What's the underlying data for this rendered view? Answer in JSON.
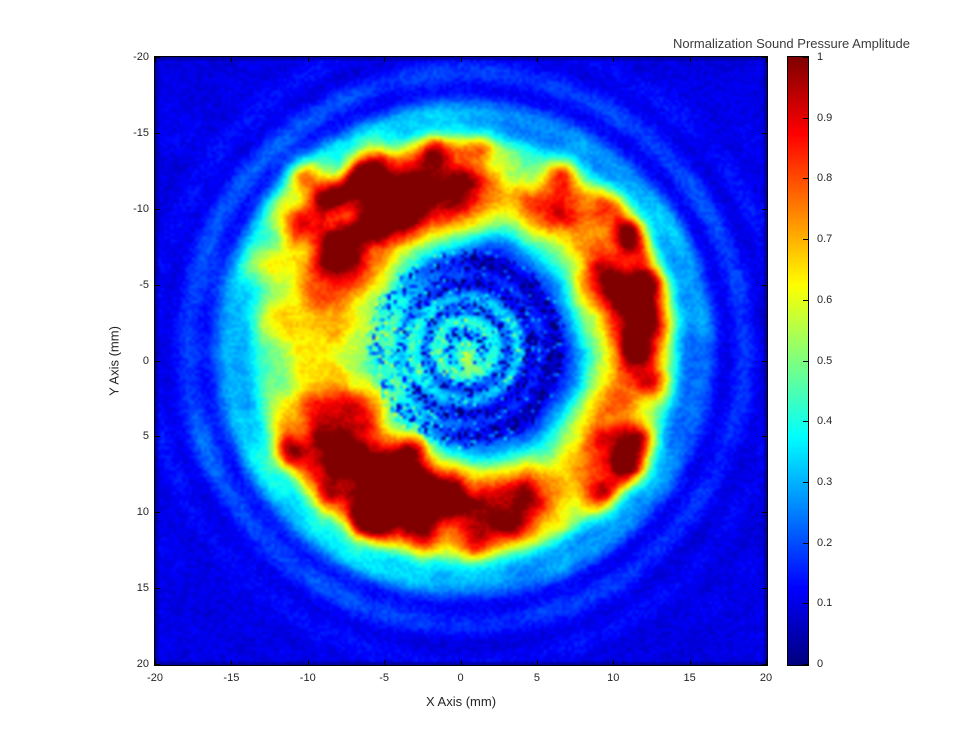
{
  "colors": {
    "background": "#ffffff",
    "axis_line": "#000000",
    "tick_text": "#262626",
    "title_text": "#3d3d3d",
    "colormap_low": "#000080",
    "colormap_high": "#800000"
  },
  "chart_data": {
    "type": "heatmap",
    "title": "Normalization Sound Pressure Amplitude",
    "xlabel": "X Axis (mm)",
    "ylabel": "Y Axis (mm)",
    "colormap": "jet",
    "xlim": [
      -20,
      20
    ],
    "ylim": [
      -20,
      20
    ],
    "y_direction": "reverse",
    "xticks": [
      -20,
      -15,
      -10,
      -5,
      0,
      5,
      10,
      15,
      20
    ],
    "xtick_labels": [
      "-20",
      "-15",
      "-10",
      "-5",
      "0",
      "5",
      "10",
      "15",
      "20"
    ],
    "yticks": [
      -20,
      -15,
      -10,
      -5,
      0,
      5,
      10,
      15,
      20
    ],
    "ytick_labels": [
      "-20",
      "-15",
      "-10",
      "-5",
      "0",
      "5",
      "10",
      "15",
      "20"
    ],
    "colorbar": {
      "min": 0,
      "max": 1,
      "tick_values": [
        0,
        0.1,
        0.2,
        0.3,
        0.4,
        0.5,
        0.6,
        0.7,
        0.8,
        0.9,
        1
      ],
      "tick_labels": [
        "0",
        "0.1",
        "0.2",
        "0.3",
        "0.4",
        "0.5",
        "0.6",
        "0.7",
        "0.8",
        "0.9",
        "1"
      ]
    },
    "grid_resolution": 200,
    "field_model": {
      "description": "Measured acoustic pressure field: broken high-amplitude annulus (r ~ 8-13 mm) with dark-red hotspot clusters upper-left, lower-left and along the right arc; speckled cyan inner region with fine concentric rings; dark-blue moat inside the annulus; faint concentric cyan ripples over a blue background outside.",
      "center": [
        0.3,
        -0.8
      ],
      "base_level": 0.095,
      "ring": {
        "radius": 10.6,
        "sigma": 2.3,
        "base_env": 0.38,
        "left_pull": {
          "k": 2.2,
          "mu_shift": -1.2,
          "sigma_add": 1.1
        },
        "lobes": [
          {
            "deg": -127,
            "k": 2.5,
            "amp": 0.4
          },
          {
            "deg": 117,
            "k": 3.5,
            "amp": 0.42
          },
          {
            "deg": -5,
            "k": 1.6,
            "amp": 0.33
          },
          {
            "deg": 180,
            "k": 5.0,
            "amp": 0.12
          },
          {
            "deg": -87,
            "k": 6.0,
            "amp": 0.1
          },
          {
            "deg": 90,
            "k": 6.0,
            "amp": 0.1
          }
        ]
      },
      "moat": {
        "radius": 6.0,
        "sigma": 1.25,
        "depth": 0.14
      },
      "inner": {
        "amp": 0.26,
        "sigma": 3.3,
        "ring_amp": 0.085,
        "ring_period": 1.6,
        "ring_phase": 0.25
      },
      "ripples": {
        "radius": 15.8,
        "sigma": 3.2,
        "amp": 0.15,
        "period": 2.6,
        "phase": 13.1
      },
      "speckle": {
        "outer": 0.05,
        "inner": 0.34,
        "inner_radius": 6.6
      },
      "hotspots": [
        [
          -5.9,
          -13.0,
          1.0,
          0.4
        ],
        [
          -8.8,
          -10.9,
          1.1,
          0.5
        ],
        [
          -3.8,
          -10.4,
          1.0,
          0.52
        ],
        [
          -11.0,
          -9.3,
          1.0,
          0.4
        ],
        [
          -8.1,
          -7.4,
          0.9,
          0.4
        ],
        [
          -6.2,
          -11.7,
          0.9,
          0.36
        ],
        [
          -10.3,
          -12.3,
          0.8,
          0.28
        ],
        [
          -5.6,
          -8.9,
          0.8,
          0.3
        ],
        [
          -12.9,
          -6.4,
          0.9,
          0.26
        ],
        [
          -1.9,
          -13.9,
          0.7,
          0.24
        ],
        [
          1.3,
          -14.1,
          0.6,
          0.18
        ],
        [
          6.7,
          -12.2,
          0.8,
          0.26
        ],
        [
          9.6,
          -10.2,
          0.9,
          0.36
        ],
        [
          10.9,
          -8.5,
          0.9,
          0.42
        ],
        [
          12.0,
          -4.9,
          0.9,
          0.34
        ],
        [
          12.3,
          -2.6,
          0.8,
          0.3
        ],
        [
          11.6,
          -0.7,
          1.0,
          0.32
        ],
        [
          12.4,
          1.3,
          0.8,
          0.32
        ],
        [
          11.4,
          5.1,
          0.9,
          0.4
        ],
        [
          10.9,
          7.1,
          0.9,
          0.46
        ],
        [
          9.2,
          8.9,
          0.9,
          0.4
        ],
        [
          -4.4,
          8.4,
          1.0,
          0.52
        ],
        [
          -6.1,
          10.5,
          0.9,
          0.48
        ],
        [
          -8.7,
          8.8,
          0.9,
          0.4
        ],
        [
          -7.4,
          6.4,
          0.8,
          0.36
        ],
        [
          -11.2,
          6.0,
          0.8,
          0.28
        ],
        [
          -3.1,
          5.7,
          0.7,
          0.28
        ],
        [
          -1.2,
          8.9,
          0.8,
          0.28
        ],
        [
          -2.5,
          11.4,
          0.8,
          0.3
        ],
        [
          0.9,
          11.8,
          0.8,
          0.28
        ],
        [
          2.9,
          10.9,
          0.7,
          0.22
        ],
        [
          0.5,
          0.3,
          0.55,
          0.2
        ]
      ]
    }
  }
}
